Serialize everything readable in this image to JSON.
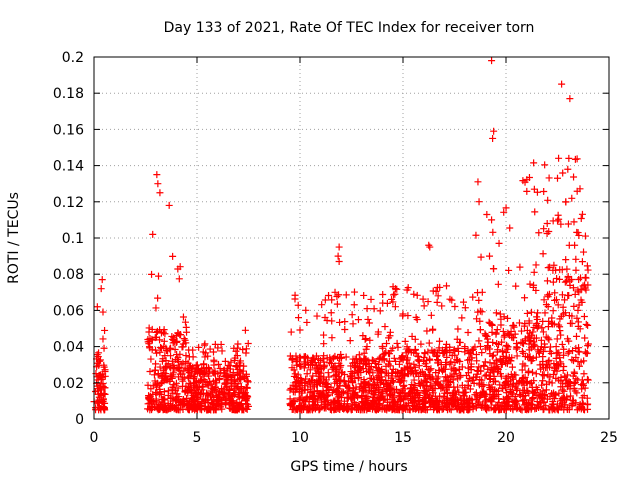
{
  "chart_data": {
    "type": "scatter",
    "title": "Day 133 of 2021, Rate Of TEC Index for receiver torn",
    "xlabel": "GPS time / hours",
    "ylabel": "ROTI / TECUs",
    "xlim": [
      0,
      25
    ],
    "ylim": [
      0,
      0.2
    ],
    "xticks": [
      "0",
      "5",
      "10",
      "15",
      "20",
      "25"
    ],
    "yticks": [
      "0",
      "0.02",
      "0.04",
      "0.06",
      "0.08",
      "0.1",
      "0.12",
      "0.14",
      "0.16",
      "0.18",
      "0.2"
    ],
    "grid": true,
    "marker": "+",
    "color": "#ff0000",
    "series_summary": [
      {
        "x_range": [
          0.0,
          0.55
        ],
        "typical": [
          0.005,
          0.04
        ],
        "max": 0.077
      },
      {
        "x_range": [
          2.6,
          4.5
        ],
        "typical": [
          0.005,
          0.05
        ],
        "max": 0.135
      },
      {
        "x_range": [
          4.5,
          7.5
        ],
        "typical": [
          0.005,
          0.03
        ],
        "max": 0.05
      },
      {
        "x_range": [
          9.5,
          14.0
        ],
        "typical": [
          0.005,
          0.035
        ],
        "max": 0.095
      },
      {
        "x_range": [
          14.0,
          18.5
        ],
        "typical": [
          0.005,
          0.04
        ],
        "max": 0.096
      },
      {
        "x_range": [
          18.5,
          22.0
        ],
        "typical": [
          0.005,
          0.06
        ],
        "max": 0.198
      },
      {
        "x_range": [
          22.0,
          24.0
        ],
        "typical": [
          0.005,
          0.085
        ],
        "max": 0.185
      }
    ],
    "notable_points": [
      {
        "x": 0.4,
        "y": 0.077
      },
      {
        "x": 0.35,
        "y": 0.072
      },
      {
        "x": 3.05,
        "y": 0.135
      },
      {
        "x": 3.1,
        "y": 0.13
      },
      {
        "x": 3.2,
        "y": 0.125
      },
      {
        "x": 3.65,
        "y": 0.118
      },
      {
        "x": 2.85,
        "y": 0.102
      },
      {
        "x": 7.35,
        "y": 0.049
      },
      {
        "x": 5.8,
        "y": 0.037
      },
      {
        "x": 11.9,
        "y": 0.095
      },
      {
        "x": 11.85,
        "y": 0.09
      },
      {
        "x": 11.9,
        "y": 0.087
      },
      {
        "x": 11.7,
        "y": 0.07
      },
      {
        "x": 13.3,
        "y": 0.055
      },
      {
        "x": 15.0,
        "y": 0.058
      },
      {
        "x": 16.25,
        "y": 0.096
      },
      {
        "x": 16.3,
        "y": 0.095
      },
      {
        "x": 19.3,
        "y": 0.198
      },
      {
        "x": 19.4,
        "y": 0.159
      },
      {
        "x": 19.35,
        "y": 0.155
      },
      {
        "x": 19.3,
        "y": 0.11
      },
      {
        "x": 19.2,
        "y": 0.09
      },
      {
        "x": 19.4,
        "y": 0.083
      },
      {
        "x": 18.85,
        "y": 0.07
      },
      {
        "x": 20.9,
        "y": 0.067
      },
      {
        "x": 22.0,
        "y": 0.108
      },
      {
        "x": 22.5,
        "y": 0.133
      },
      {
        "x": 22.7,
        "y": 0.185
      },
      {
        "x": 23.1,
        "y": 0.177
      },
      {
        "x": 23.05,
        "y": 0.144
      },
      {
        "x": 23.0,
        "y": 0.138
      },
      {
        "x": 22.9,
        "y": 0.12
      },
      {
        "x": 23.5,
        "y": 0.103
      }
    ]
  }
}
